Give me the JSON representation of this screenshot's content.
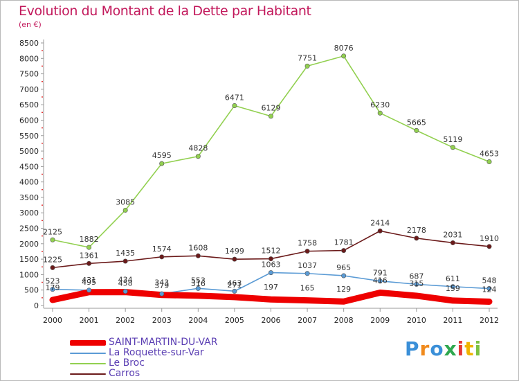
{
  "title": "Evolution du Montant de la Dette par Habitant",
  "subtitle": "(en €)",
  "brand": {
    "letters": [
      "P",
      "r",
      "o",
      "x",
      "i",
      "t",
      "i"
    ],
    "colors": [
      "#3a8fd8",
      "#f08a1c",
      "#3a8fd8",
      "#2fa84f",
      "#e53935",
      "#f0b400",
      "#7cc242"
    ]
  },
  "chart_data": {
    "type": "line",
    "title": "Evolution du Montant de la Dette par Habitant",
    "ylabel": "(en €)",
    "x": [
      "2000",
      "2001",
      "2002",
      "2003",
      "2004",
      "2005",
      "2006",
      "2007",
      "2008",
      "2009",
      "2010",
      "2011",
      "2012"
    ],
    "ylim": [
      0,
      8500
    ],
    "yticks": [
      "0",
      "500",
      "1000",
      "1500",
      "2000",
      "2500",
      "3000",
      "3500",
      "4000",
      "4500",
      "5000",
      "5500",
      "6000",
      "6500",
      "7000",
      "7500",
      "8000",
      "8500"
    ],
    "grid": false,
    "legend_position": "bottom-left",
    "series": [
      {
        "name": "SAINT-MARTIN-DU-VAR",
        "color": "#ee0000",
        "values": [
          179,
          431,
          434,
          343,
          316,
          271,
          197,
          165,
          129,
          416,
          315,
          159,
          124
        ]
      },
      {
        "name": "La Roquette-sur-Var",
        "color": "#5b9bd5",
        "values": [
          523,
          495,
          458,
          379,
          553,
          463,
          1063,
          1037,
          965,
          791,
          687,
          611,
          548
        ]
      },
      {
        "name": "Le Broc",
        "color": "#92d050",
        "values": [
          2125,
          1882,
          3085,
          4595,
          4828,
          6471,
          6129,
          7751,
          8076,
          6230,
          5665,
          5119,
          4653
        ]
      },
      {
        "name": "Carros",
        "color": "#6b1a1a",
        "values": [
          1225,
          1361,
          1435,
          1574,
          1608,
          1499,
          1512,
          1758,
          1781,
          2414,
          2178,
          2031,
          1910
        ]
      }
    ]
  }
}
